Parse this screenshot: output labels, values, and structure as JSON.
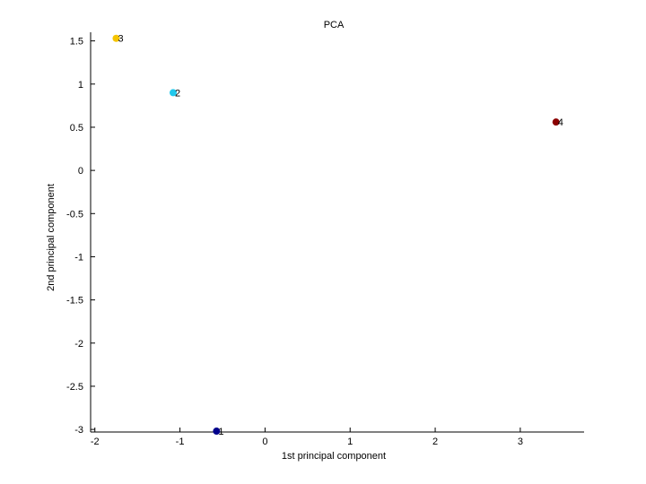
{
  "chart_data": {
    "type": "scatter",
    "title": "PCA",
    "xlabel": "1st principal component",
    "ylabel": "2nd principal component",
    "xlim": [
      -2.05,
      3.75
    ],
    "ylim": [
      -3.03,
      1.6
    ],
    "xticks": [
      -2,
      -1,
      0,
      1,
      2,
      3
    ],
    "xtick_labels": [
      "-2",
      "-1",
      "0",
      "1",
      "2",
      "3"
    ],
    "yticks": [
      1.5,
      1,
      0.5,
      0,
      -0.5,
      -1,
      -1.5,
      -2,
      -2.5,
      -3
    ],
    "ytick_labels": [
      "1.5",
      "1",
      "0.5",
      "0",
      "-0.5",
      "-1",
      "-1.5",
      "-2",
      "-2.5",
      "-3"
    ],
    "grid": false,
    "legend": "none",
    "points": [
      {
        "x": -1.75,
        "y": 1.53,
        "label": "3",
        "color": "#f5c400"
      },
      {
        "x": -1.08,
        "y": 0.9,
        "label": "2",
        "color": "#22c8ec"
      },
      {
        "x": 3.42,
        "y": 0.56,
        "label": "4",
        "color": "#8b0000"
      },
      {
        "x": -0.57,
        "y": -3.02,
        "label": "1",
        "color": "#00008b"
      }
    ]
  }
}
